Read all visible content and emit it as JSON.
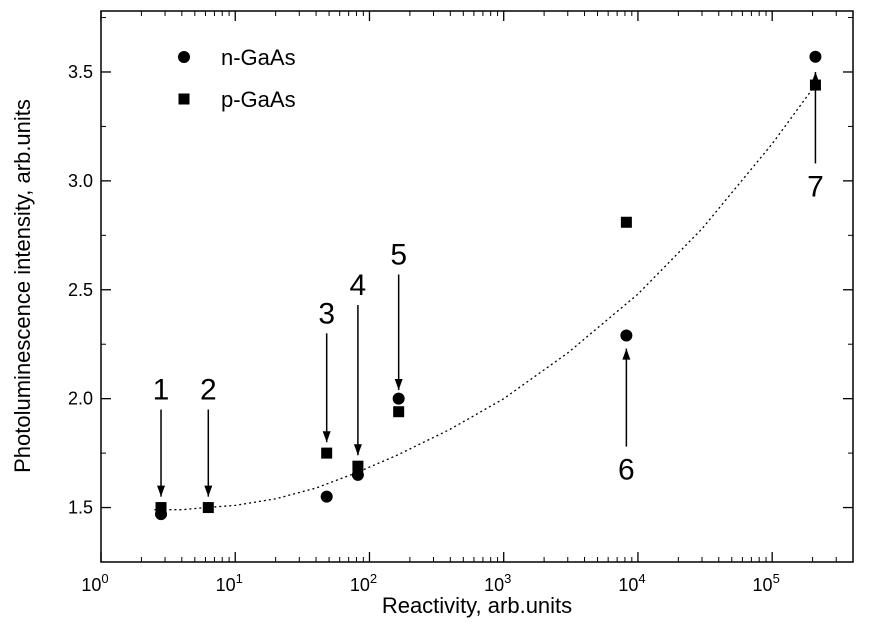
{
  "chart_data": {
    "type": "scatter",
    "title": "",
    "xlabel": "Reactivity, arb.units",
    "ylabel": "Photoluminescence intensity, arb.units",
    "xscale": "log",
    "xlim": [
      1,
      400000
    ],
    "ylim": [
      1.25,
      3.78
    ],
    "grid": false,
    "legend_position": "top-left",
    "x_ticks": [
      {
        "value": 1,
        "base": "10",
        "exp": "0"
      },
      {
        "value": 10,
        "base": "10",
        "exp": "1"
      },
      {
        "value": 100,
        "base": "10",
        "exp": "2"
      },
      {
        "value": 1000,
        "base": "10",
        "exp": "3"
      },
      {
        "value": 10000,
        "base": "10",
        "exp": "4"
      },
      {
        "value": 100000,
        "base": "10",
        "exp": "5"
      }
    ],
    "y_ticks": [
      {
        "value": 1.5,
        "label": "1.5"
      },
      {
        "value": 2.0,
        "label": "2.0"
      },
      {
        "value": 2.5,
        "label": "2.5"
      },
      {
        "value": 3.0,
        "label": "3.0"
      },
      {
        "value": 3.5,
        "label": "3.5"
      }
    ],
    "series": [
      {
        "name": "n-GaAs",
        "marker": "circle",
        "color": "#000000",
        "points": [
          {
            "x": 2.8,
            "y": 1.47
          },
          {
            "x": 48,
            "y": 1.55
          },
          {
            "x": 82,
            "y": 1.65
          },
          {
            "x": 165,
            "y": 2.0
          },
          {
            "x": 8200,
            "y": 2.29
          },
          {
            "x": 210000,
            "y": 3.57
          }
        ]
      },
      {
        "name": "p-GaAs",
        "marker": "square",
        "color": "#000000",
        "points": [
          {
            "x": 2.8,
            "y": 1.5
          },
          {
            "x": 6.3,
            "y": 1.5
          },
          {
            "x": 48,
            "y": 1.75
          },
          {
            "x": 82,
            "y": 1.69
          },
          {
            "x": 165,
            "y": 1.94
          },
          {
            "x": 8200,
            "y": 2.81
          },
          {
            "x": 210000,
            "y": 3.44
          }
        ]
      }
    ],
    "fit_curve": {
      "style": "dotted",
      "x": [
        2.5,
        4,
        6,
        10,
        20,
        40,
        80,
        160,
        400,
        1000,
        3000,
        10000,
        30000,
        100000,
        210000
      ],
      "y": [
        1.49,
        1.49,
        1.5,
        1.51,
        1.54,
        1.59,
        1.66,
        1.74,
        1.86,
        2.0,
        2.21,
        2.48,
        2.78,
        3.17,
        3.44
      ]
    },
    "annotations": [
      {
        "label": "1",
        "x": 2.8,
        "direction": "down",
        "y_from": 1.95,
        "y_to": 1.55
      },
      {
        "label": "2",
        "x": 6.3,
        "direction": "down",
        "y_from": 1.95,
        "y_to": 1.55
      },
      {
        "label": "3",
        "x": 48,
        "direction": "down",
        "y_from": 2.3,
        "y_to": 1.8
      },
      {
        "label": "4",
        "x": 82,
        "direction": "down",
        "y_from": 2.43,
        "y_to": 1.74
      },
      {
        "label": "5",
        "x": 165,
        "direction": "down",
        "y_from": 2.57,
        "y_to": 2.04
      },
      {
        "label": "6",
        "x": 8200,
        "direction": "up",
        "y_from": 1.78,
        "y_to": 2.23
      },
      {
        "label": "7",
        "x": 210000,
        "direction": "up",
        "y_from": 3.08,
        "y_to": 3.5
      }
    ]
  }
}
